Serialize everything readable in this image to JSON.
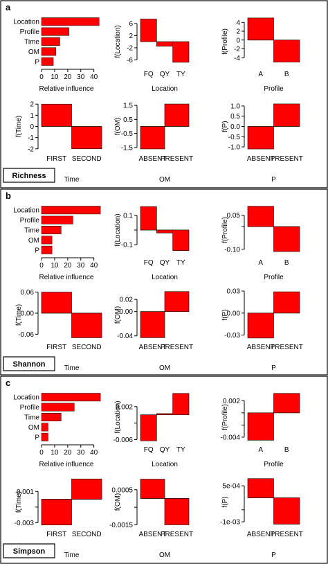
{
  "colors": {
    "bar": "#ff0000",
    "bar_stroke": "#000000",
    "frame": "#000000",
    "background": "#ffffff"
  },
  "panels": [
    {
      "letter": "a",
      "name_label": "Richness",
      "charts": [
        {
          "type": "bar",
          "orientation": "horizontal",
          "categories": [
            "Location",
            "Profile",
            "Time",
            "OM",
            "P"
          ],
          "values": [
            44,
            21,
            14,
            11,
            9
          ],
          "xlabel": "Relative influence",
          "xlim": [
            0,
            46
          ],
          "xticks": [
            0,
            10,
            20,
            30,
            40
          ],
          "xtick_labels": [
            "0",
            "10",
            "20",
            "30",
            "40"
          ]
        },
        {
          "type": "bar",
          "categories": [
            "FQ",
            "QY",
            "TY"
          ],
          "values": [
            7.5,
            -1.5,
            -6.8
          ],
          "xlabel": "Location",
          "ylabel": "f(Location)",
          "ylim": [
            -8.2,
            8.3
          ],
          "yticks": [
            6,
            2,
            -2,
            -6
          ],
          "ytick_labels": [
            "6",
            "2",
            "-2",
            "-6"
          ]
        },
        {
          "type": "bar",
          "categories": [
            "A",
            "B"
          ],
          "values": [
            5.0,
            -5.0
          ],
          "xlabel": "Profile",
          "ylabel": "f(Profile)",
          "ylim": [
            -6.0,
            5.3
          ],
          "yticks": [
            4,
            2,
            0,
            -2,
            -4
          ],
          "ytick_labels": [
            "4",
            "2",
            "0",
            "-2",
            "-4"
          ]
        },
        {
          "type": "bar",
          "categories": [
            "FIRST",
            "SECOND"
          ],
          "values": [
            2.0,
            -2.0
          ],
          "xlabel": "Time",
          "ylabel": "f(Time)",
          "ylim": [
            -2.2,
            2.2
          ],
          "yticks": [
            2,
            1,
            0,
            -1,
            -2
          ],
          "ytick_labels": [
            "2",
            "1",
            "0",
            "-1",
            "-2"
          ]
        },
        {
          "type": "bar",
          "categories": [
            "ABSENT",
            "PRESENT"
          ],
          "values": [
            -1.6,
            1.6
          ],
          "xlabel": "OM",
          "ylabel": "f(OM)",
          "ylim": [
            -1.75,
            1.75
          ],
          "yticks": [
            1.5,
            0.5,
            -0.5,
            -1.5
          ],
          "ytick_labels": [
            "1.5",
            "0.5",
            "-0.5",
            "-1.5"
          ]
        },
        {
          "type": "bar",
          "categories": [
            "ABSENT",
            "PRESENT"
          ],
          "values": [
            -1.1,
            1.1
          ],
          "xlabel": "P",
          "ylabel": "f(P)",
          "ylim": [
            -1.2,
            1.2
          ],
          "yticks": [
            1.0,
            0.5,
            0,
            -0.5,
            -1.0
          ],
          "ytick_labels": [
            "1.0",
            "0.5",
            "0.0",
            "-0.5",
            "-1.0"
          ]
        }
      ]
    },
    {
      "letter": "b",
      "name_label": "Shannon",
      "charts": [
        {
          "type": "bar",
          "orientation": "horizontal",
          "categories": [
            "Location",
            "Profile",
            "Time",
            "OM",
            "P"
          ],
          "values": [
            45,
            24,
            15,
            8,
            8
          ],
          "xlabel": "Relative influence",
          "xlim": [
            0,
            46
          ],
          "xticks": [
            0,
            10,
            20,
            30,
            40
          ],
          "xtick_labels": [
            "0",
            "10",
            "20",
            "30",
            "40"
          ]
        },
        {
          "type": "bar",
          "categories": [
            "FQ",
            "QY",
            "TY"
          ],
          "values": [
            0.16,
            -0.02,
            -0.14
          ],
          "xlabel": "Location",
          "ylabel": "f(Location)",
          "ylim": [
            -0.17,
            0.17
          ],
          "yticks": [
            0.1,
            0.0,
            -0.1
          ],
          "ytick_labels": [
            "0.1",
            "",
            "-0.1"
          ]
        },
        {
          "type": "bar",
          "categories": [
            "A",
            "B"
          ],
          "values": [
            0.09,
            -0.11
          ],
          "xlabel": "Profile",
          "ylabel": "f(Profile)",
          "ylim": [
            -0.125,
            0.095
          ],
          "yticks": [
            0.05,
            0,
            -0.1
          ],
          "ytick_labels": [
            "0.05",
            "",
            "-0.10"
          ]
        },
        {
          "type": "bar",
          "categories": [
            "FIRST",
            "SECOND"
          ],
          "values": [
            0.06,
            -0.07
          ],
          "xlabel": "Time",
          "ylabel": "f(Time)",
          "ylim": [
            -0.075,
            0.065
          ],
          "yticks": [
            0.06,
            0,
            -0.06
          ],
          "ytick_labels": [
            "0.06",
            "0.00",
            "-0.06"
          ]
        },
        {
          "type": "bar",
          "categories": [
            "ABSENT",
            "PRESENT"
          ],
          "values": [
            -0.043,
            0.033
          ],
          "xlabel": "OM",
          "ylabel": "f(OM)",
          "ylim": [
            -0.046,
            0.035
          ],
          "yticks": [
            0.02,
            0,
            -0.04
          ],
          "ytick_labels": [
            "0.02",
            "0.00",
            "-0.04"
          ]
        },
        {
          "type": "bar",
          "categories": [
            "ABSENT",
            "PRESENT"
          ],
          "values": [
            -0.034,
            0.029
          ],
          "xlabel": "P",
          "ylabel": "f(P)",
          "ylim": [
            -0.036,
            0.031
          ],
          "yticks": [
            0.03,
            0,
            -0.03
          ],
          "ytick_labels": [
            "0.03",
            "0.00",
            "-0.03"
          ]
        }
      ]
    },
    {
      "letter": "c",
      "name_label": "Simpson",
      "charts": [
        {
          "type": "bar",
          "orientation": "horizontal",
          "categories": [
            "Location",
            "Profile",
            "Time",
            "OM",
            "P"
          ],
          "values": [
            45,
            25,
            15,
            5,
            5
          ],
          "xlabel": "Relative influence",
          "xlim": [
            0,
            46
          ],
          "xticks": [
            0,
            10,
            20,
            30,
            40
          ],
          "xtick_labels": [
            "0",
            "10",
            "20",
            "30",
            "40"
          ]
        },
        {
          "type": "bar",
          "categories": [
            "FQ",
            "QY",
            "TY"
          ],
          "values": [
            -0.0063,
            0.0003,
            0.0052
          ],
          "xlabel": "Location",
          "ylabel": "f(Location)",
          "ylim": [
            -0.0066,
            0.0055
          ],
          "yticks": [
            0.002,
            -0.002,
            -0.006
          ],
          "ytick_labels": [
            "0.002",
            "",
            "-0.006"
          ]
        },
        {
          "type": "bar",
          "categories": [
            "A",
            "B"
          ],
          "values": [
            -0.0045,
            0.0032
          ],
          "xlabel": "Profile",
          "ylabel": "f(Profile)",
          "ylim": [
            -0.0048,
            0.0034
          ],
          "yticks": [
            0.002,
            0,
            -0.002,
            -0.004
          ],
          "ytick_labels": [
            "0.002",
            "",
            "",
            "-0.004"
          ]
        },
        {
          "type": "bar",
          "categories": [
            "FIRST",
            "SECOND"
          ],
          "values": [
            -0.0033,
            0.0026
          ],
          "xlabel": "Time",
          "ylabel": "f(Time)",
          "ylim": [
            -0.0035,
            0.0028
          ],
          "yticks": [
            0.001,
            -0.001,
            -0.003
          ],
          "ytick_labels": [
            "0.001",
            "",
            "-0.003"
          ]
        },
        {
          "type": "bar",
          "categories": [
            "ABSENT",
            "PRESENT"
          ],
          "values": [
            0.0011,
            -0.0015
          ],
          "xlabel": "OM",
          "ylabel": "f(OM)",
          "ylim": [
            -0.0016,
            0.0012
          ],
          "yticks": [
            0.0005,
            -0.0005,
            -0.0015
          ],
          "ytick_labels": [
            "0.0005",
            "",
            "-0.0015"
          ]
        },
        {
          "type": "bar",
          "categories": [
            "ABSENT",
            "PRESENT"
          ],
          "values": [
            0.0008,
            -0.0011
          ],
          "xlabel": "P",
          "ylabel": "f(P)",
          "ylim": [
            -0.0012,
            0.00085
          ],
          "yticks": [
            0.0005,
            -0.0005,
            -0.001
          ],
          "ytick_labels": [
            "5e-04",
            "",
            "-1e-03"
          ]
        }
      ]
    }
  ]
}
